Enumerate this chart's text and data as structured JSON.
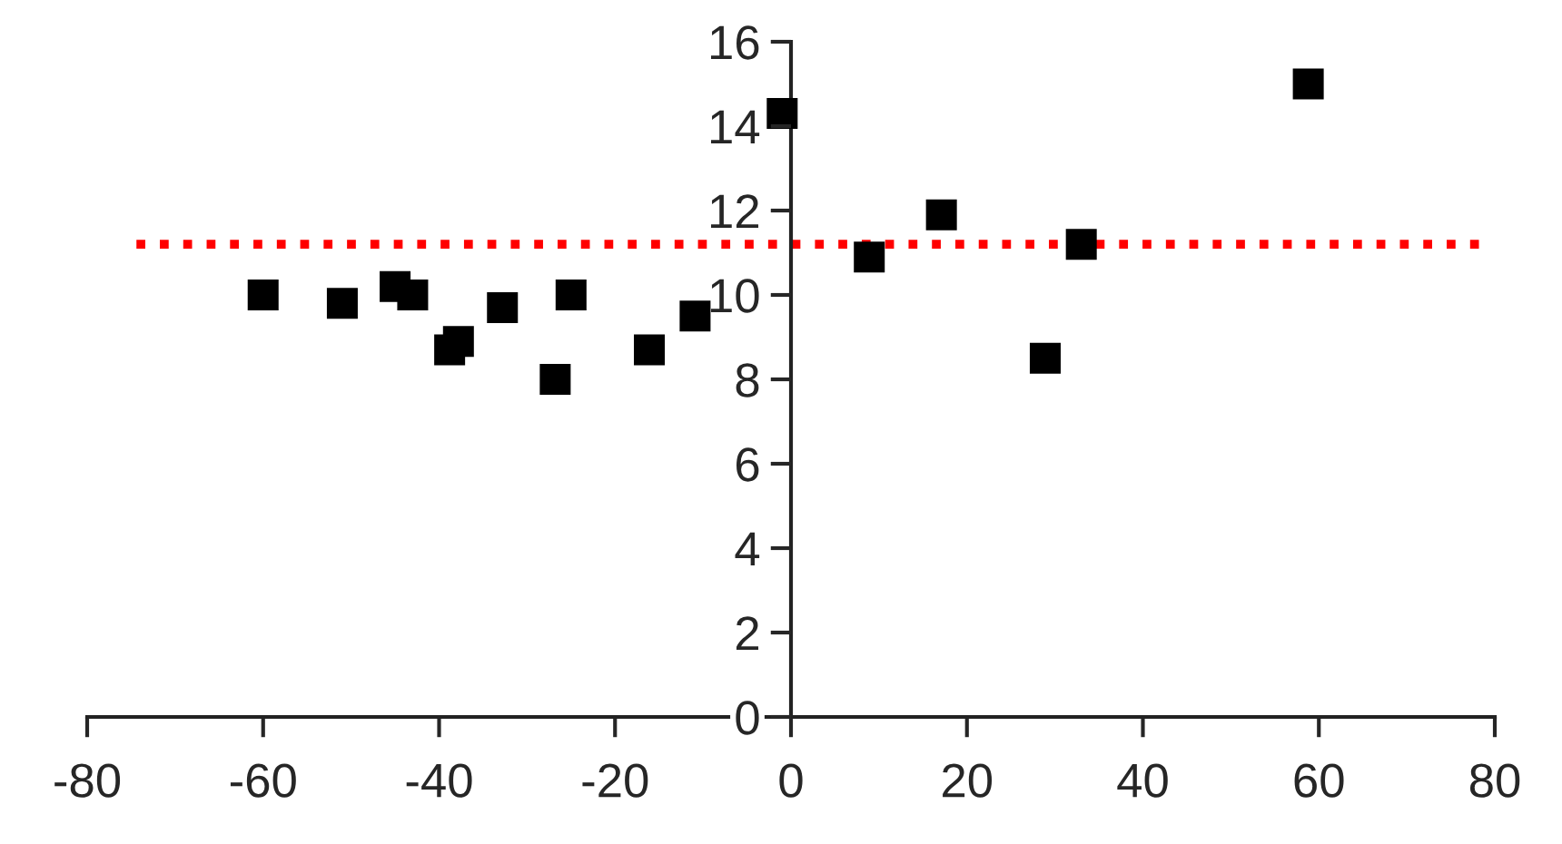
{
  "chart_data": {
    "type": "scatter",
    "x": [
      -60,
      -51,
      -45,
      -43,
      -38.8,
      -37.8,
      -32.8,
      -26.8,
      -25,
      -16.1,
      -10.9,
      -1,
      8.9,
      17.1,
      28.9,
      33,
      58.8
    ],
    "series": [
      {
        "color": "#000000",
        "values": [
          10.0,
          9.8,
          10.2,
          10.0,
          8.7,
          8.9,
          9.7,
          8.0,
          10.0,
          8.7,
          9.5,
          14.3,
          10.9,
          11.9,
          8.5,
          11.2,
          15.0
        ]
      }
    ],
    "marker": "square",
    "xlim": [
      -80,
      80
    ],
    "ylim": [
      0,
      16
    ],
    "xticks": [
      -80,
      -60,
      -40,
      -20,
      0,
      20,
      40,
      60,
      80
    ],
    "yticks": [
      0,
      2,
      4,
      6,
      8,
      10,
      12,
      14,
      16
    ],
    "ref_lines": [
      {
        "axis": "y",
        "value": 11.2,
        "color": "#ff0000",
        "line_style": "dotted"
      }
    ],
    "grid": false,
    "legend": false
  }
}
